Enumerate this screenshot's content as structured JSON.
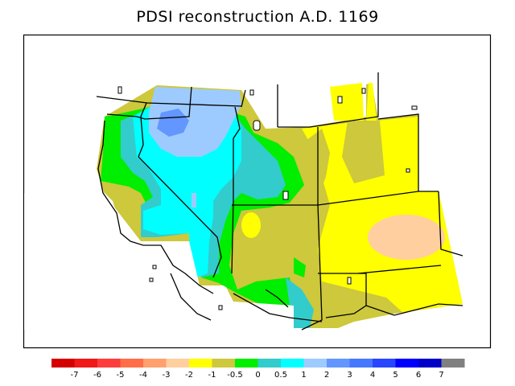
{
  "title": "PDSI reconstruction A.D. 1169",
  "legend": {
    "colors": [
      "#d40000",
      "#f01818",
      "#ff3c3c",
      "#ff6e46",
      "#ffa06e",
      "#ffcfa0",
      "#ffff00",
      "#cdc83c",
      "#00ee00",
      "#33cccc",
      "#00ffff",
      "#9ecbff",
      "#6496ff",
      "#4678ff",
      "#2846ff",
      "#0000ff",
      "#0000c8",
      "#808080"
    ],
    "labels": [
      "-7",
      "-6",
      "-5",
      "-4",
      "-3",
      "-2",
      "-1",
      "-0.5",
      "0",
      "0.5",
      "1",
      "2",
      "3",
      "4",
      "5",
      "6",
      "7"
    ]
  },
  "palette": {
    "dark_blue": "#6496ff",
    "light_blue": "#9ecbff",
    "cyan": "#00ffff",
    "teal": "#33cccc",
    "green": "#00ee00",
    "olive": "#cdc83c",
    "yellow": "#ffff00",
    "peach": "#ffcfa0"
  }
}
